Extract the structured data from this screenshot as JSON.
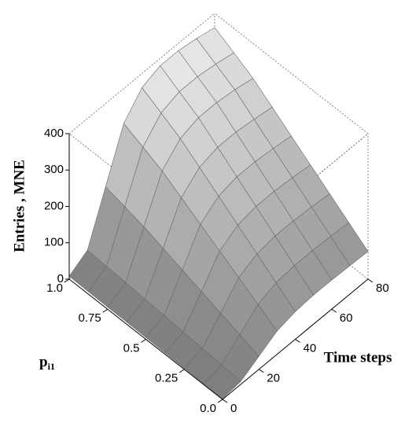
{
  "chart_data": {
    "type": "surface",
    "x": [
      0,
      10,
      20,
      30,
      40,
      50,
      60,
      70,
      80
    ],
    "y": [
      0,
      0.125,
      0.25,
      0.375,
      0.5,
      0.625,
      0.75,
      0.875,
      1
    ],
    "z": [
      [
        2,
        8,
        36,
        64,
        76,
        80,
        80,
        78,
        76
      ],
      [
        2,
        12,
        54,
        96,
        114,
        120,
        120,
        118,
        114
      ],
      [
        3,
        16,
        72,
        128,
        152,
        160,
        160,
        157,
        152
      ],
      [
        4,
        20,
        90,
        160,
        190,
        200,
        200,
        196,
        190
      ],
      [
        5,
        24,
        108,
        192,
        228,
        240,
        240,
        235,
        228
      ],
      [
        6,
        28,
        126,
        224,
        266,
        280,
        280,
        274,
        266
      ],
      [
        6,
        32,
        144,
        256,
        304,
        320,
        320,
        314,
        304
      ],
      [
        7,
        35,
        158,
        280,
        333,
        350,
        350,
        343,
        333
      ],
      [
        8,
        38,
        171,
        304,
        361,
        380,
        380,
        372,
        361
      ]
    ],
    "xlabel": "Time steps",
    "ylabel": "p",
    "ylabel_subscript": "i1",
    "zlabel": "Entries , MNE",
    "xlim": [
      0,
      80
    ],
    "xticks": [
      0,
      20,
      40,
      60,
      80
    ],
    "ylim": [
      0,
      1
    ],
    "yticks": [
      {
        "value": 0,
        "label": "0.0"
      },
      0.25,
      0.5,
      0.75,
      {
        "value": 1,
        "label": "1.0"
      }
    ],
    "zlim": [
      0,
      400
    ],
    "zticks": [
      0,
      100,
      200,
      300,
      400
    ]
  }
}
